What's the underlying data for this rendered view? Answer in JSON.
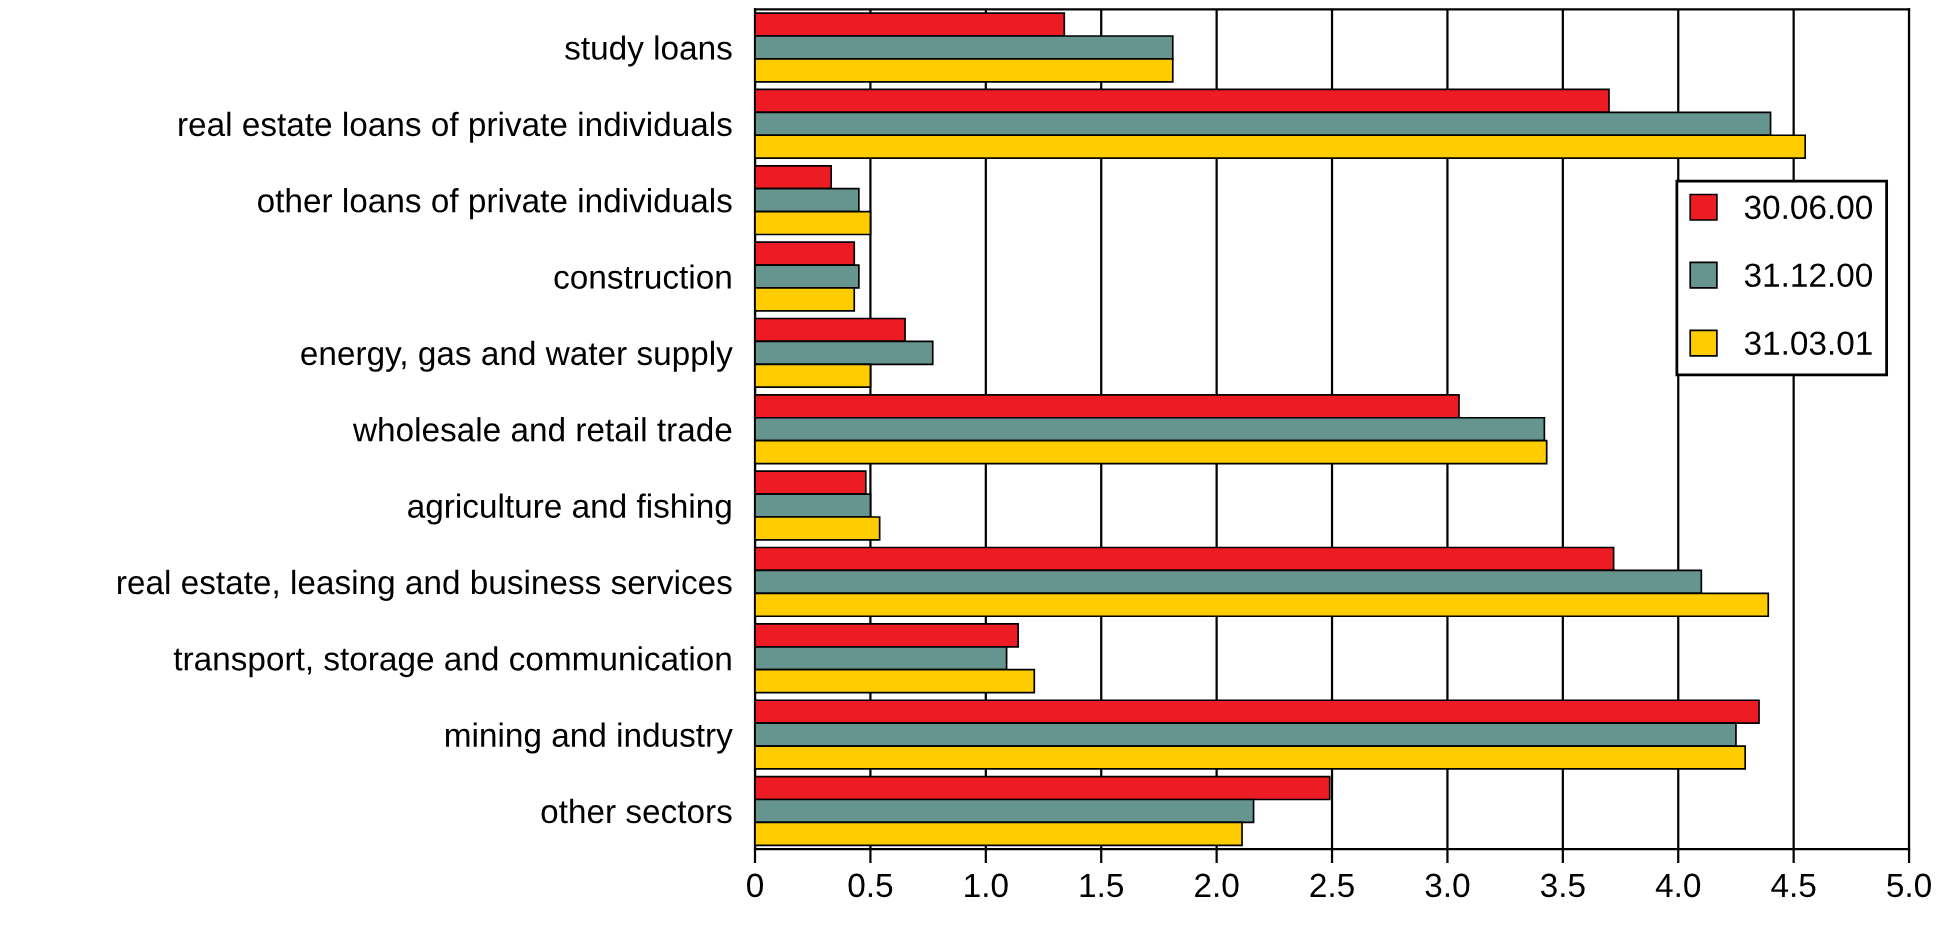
{
  "chart_data": {
    "type": "bar",
    "orientation": "horizontal",
    "categories": [
      "study loans",
      "real estate loans of private individuals",
      "other loans of private individuals",
      "construction",
      "energy, gas and water supply",
      "wholesale and retail trade",
      "agriculture and fishing",
      "real estate, leasing and business services",
      "transport, storage and communication",
      "mining and industry",
      "other sectors"
    ],
    "series": [
      {
        "name": "30.06.00",
        "color": "#ed1c24",
        "values": [
          1.34,
          3.7,
          0.33,
          0.43,
          0.65,
          3.05,
          0.48,
          3.72,
          1.14,
          4.35,
          2.49
        ]
      },
      {
        "name": "31.12.00",
        "color": "#66948f",
        "values": [
          1.81,
          4.4,
          0.45,
          0.45,
          0.77,
          3.42,
          0.5,
          4.1,
          1.09,
          4.25,
          2.16
        ]
      },
      {
        "name": "31.03.01",
        "color": "#ffcc00",
        "values": [
          1.81,
          4.55,
          0.5,
          0.43,
          0.5,
          3.43,
          0.54,
          4.39,
          1.21,
          4.29,
          2.11
        ]
      }
    ],
    "xlim": [
      0,
      5
    ],
    "xticks": [
      {
        "value": 0,
        "label": "0"
      },
      {
        "value": 0.5,
        "label": "0.5"
      },
      {
        "value": 1,
        "label": "1.0"
      },
      {
        "value": 1.5,
        "label": "1.5"
      },
      {
        "value": 2,
        "label": "2.0"
      },
      {
        "value": 2.5,
        "label": "2.5"
      },
      {
        "value": 3,
        "label": "3.0"
      },
      {
        "value": 3.5,
        "label": "3.5"
      },
      {
        "value": 4,
        "label": "4.0"
      },
      {
        "value": 4.5,
        "label": "4.5"
      },
      {
        "value": 5,
        "label": "5.0"
      }
    ],
    "grid": "x",
    "legend": "right"
  }
}
